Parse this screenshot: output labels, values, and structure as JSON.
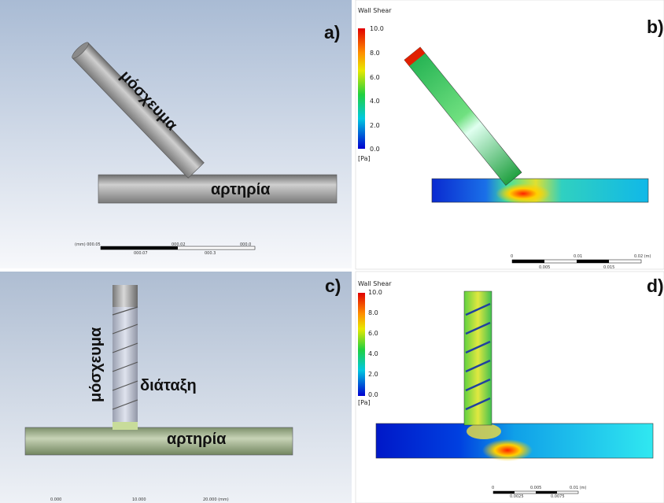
{
  "panels": [
    {
      "label": "a)",
      "graft": "μόσχευμα",
      "artery": "αρτηρία",
      "scale": [
        "(mm) 000.05",
        "000.02",
        "000.0",
        "000.07",
        "000.3"
      ]
    },
    {
      "label": "b)",
      "legend": {
        "title": "Wall Shear",
        "ticks": [
          "10.0",
          "8.0",
          "6.0",
          "4.0",
          "2.0",
          "0.0"
        ],
        "unit": "[Pa]"
      },
      "scale": [
        "0",
        "0.01",
        "0.02 (m)",
        "0.005",
        "0.015"
      ]
    },
    {
      "label": "c)",
      "graft": "μόσχευμα",
      "device": "διάταξη",
      "artery": "αρτηρία",
      "scale": [
        "0.000",
        "10.000",
        "20.000 (mm)"
      ]
    },
    {
      "label": "d)",
      "legend": {
        "title": "Wall Shear",
        "ticks": [
          "10.0",
          "8.0",
          "6.0",
          "4.0",
          "2.0",
          "0.0"
        ],
        "unit": "[Pa]"
      },
      "scale": [
        "0",
        "0.005",
        "0.01 (m)",
        "0.0025",
        "0.0075"
      ]
    }
  ]
}
